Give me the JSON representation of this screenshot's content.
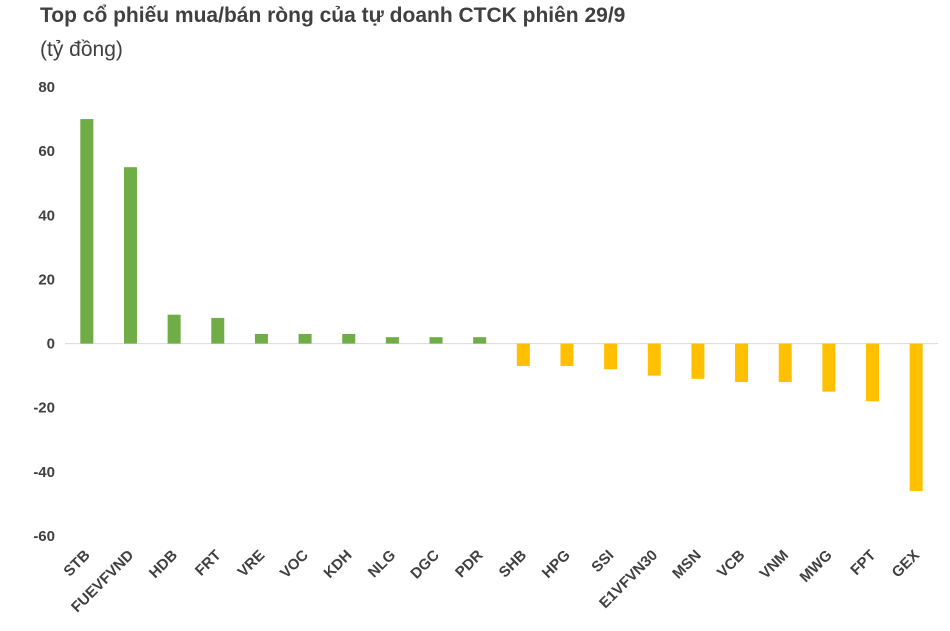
{
  "chart_data": {
    "type": "bar",
    "title": "Top cổ phiếu mua/bán ròng của tự doanh CTCK phiên 29/9",
    "subtitle": "(tỷ đồng)",
    "categories": [
      "STB",
      "FUEVFVND",
      "HDB",
      "FRT",
      "VRE",
      "VOC",
      "KDH",
      "NLG",
      "DGC",
      "PDR",
      "SHB",
      "HPG",
      "SSI",
      "E1VFVN30",
      "MSN",
      "VCB",
      "VNM",
      "MWG",
      "FPT",
      "GEX"
    ],
    "values": [
      70,
      55,
      9,
      8,
      3,
      3,
      3,
      2,
      2,
      2,
      -7,
      -7,
      -8,
      -10,
      -11,
      -12,
      -12,
      -15,
      -18,
      -46
    ],
    "yticks": [
      80,
      60,
      40,
      20,
      0,
      -20,
      -40,
      -60
    ],
    "ylim": [
      -60,
      80
    ],
    "grid": false,
    "legend": "none",
    "colors": {
      "positive": "#70ad47",
      "negative": "#ffc000",
      "axis": "#d9d9d9",
      "text": "#404040"
    }
  }
}
